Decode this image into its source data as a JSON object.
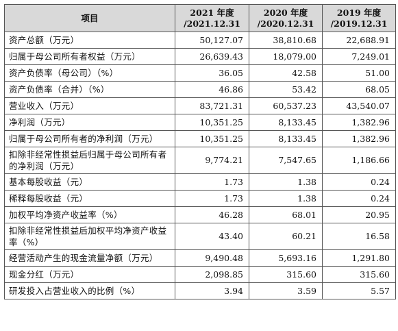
{
  "table": {
    "header": {
      "item": "项目",
      "col_2021_line1": "2021 年度",
      "col_2021_line2": "/2021.12.31",
      "col_2020_line1": "2020 年度",
      "col_2020_line2": "/2020.12.31",
      "col_2019_line1": "2019 年度",
      "col_2019_line2": "/2019.12.31"
    },
    "rows": [
      {
        "label": "资产总额（万元）",
        "v2021": "50,127.07",
        "v2020": "38,810.68",
        "v2019": "22,688.91"
      },
      {
        "label": "归属于母公司所有者权益（万元）",
        "v2021": "26,639.43",
        "v2020": "18,079.00",
        "v2019": "7,249.01"
      },
      {
        "label": "资产负债率（母公司）（%）",
        "v2021": "36.05",
        "v2020": "42.58",
        "v2019": "51.00"
      },
      {
        "label": "资产负债率（合并）（%）",
        "v2021": "46.86",
        "v2020": "53.42",
        "v2019": "68.05"
      },
      {
        "label": "营业收入（万元）",
        "v2021": "83,721.31",
        "v2020": "60,537.23",
        "v2019": "43,540.07"
      },
      {
        "label": "净利润（万元）",
        "v2021": "10,351.25",
        "v2020": "8,133.45",
        "v2019": "1,382.96"
      },
      {
        "label": "归属于母公司所有者的净利润（万元）",
        "v2021": "10,351.25",
        "v2020": "8,133.45",
        "v2019": "1,382.96"
      },
      {
        "label": "扣除非经常性损益后归属于母公司所有者的净利润（万元）",
        "v2021": "9,774.21",
        "v2020": "7,547.65",
        "v2019": "1,186.66"
      },
      {
        "label": "基本每股收益（元）",
        "v2021": "1.73",
        "v2020": "1.38",
        "v2019": "0.24"
      },
      {
        "label": "稀释每股收益（元）",
        "v2021": "1.73",
        "v2020": "1.38",
        "v2019": "0.24"
      },
      {
        "label": "加权平均净资产收益率（%）",
        "v2021": "46.28",
        "v2020": "68.01",
        "v2019": "20.95"
      },
      {
        "label": "扣除非经常性损益后加权平均净资产收益率（%）",
        "v2021": "43.40",
        "v2020": "60.21",
        "v2019": "16.58"
      },
      {
        "label": "经营活动产生的现金流量净额（万元）",
        "v2021": "9,490.48",
        "v2020": "5,693.16",
        "v2019": "1,291.80"
      },
      {
        "label": "现金分红（万元）",
        "v2021": "2,098.85",
        "v2020": "315.60",
        "v2019": "315.60"
      },
      {
        "label": "研发投入占营业收入的比例（%）",
        "v2021": "3.94",
        "v2020": "3.59",
        "v2019": "5.57"
      }
    ]
  }
}
